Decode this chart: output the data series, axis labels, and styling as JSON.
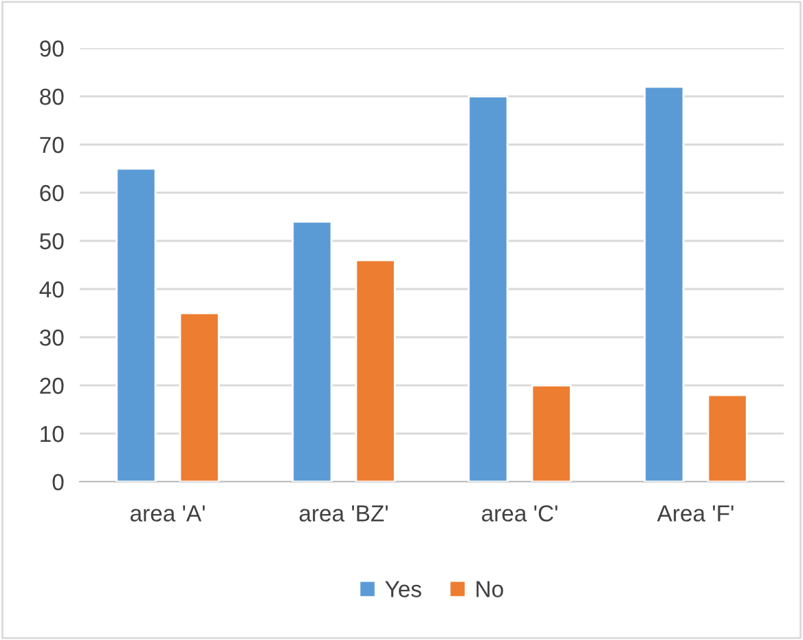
{
  "chart_data": {
    "type": "bar",
    "categories": [
      "area 'A'",
      "area 'BZ'",
      "area 'C'",
      "Area 'F'"
    ],
    "series": [
      {
        "name": "Yes",
        "color": "#5b9bd5",
        "values": [
          65,
          54,
          80,
          82
        ]
      },
      {
        "name": "No",
        "color": "#ed7d31",
        "values": [
          35,
          46,
          20,
          18
        ]
      }
    ],
    "ylim": [
      0,
      90
    ],
    "yticks": [
      0,
      10,
      20,
      30,
      40,
      50,
      60,
      70,
      80,
      90
    ],
    "grid": "y",
    "legend": "bottom"
  }
}
